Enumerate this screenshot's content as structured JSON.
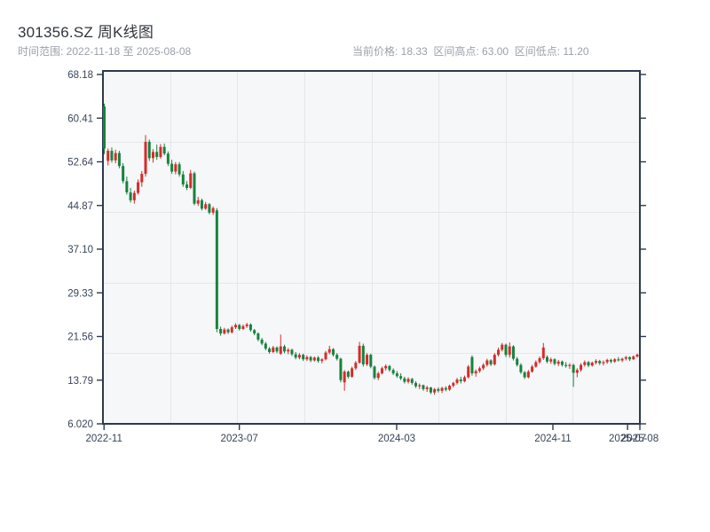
{
  "header": {
    "title": "301356.SZ 周K线图",
    "date_range": "时间范围: 2022-11-18 至 2025-08-08",
    "price_summary": "当前价格: 18.33  区间高点: 63.00  区间低点: 11.20"
  },
  "chart_data": {
    "type": "candlestick",
    "symbol": "301356.SZ",
    "period": "weekly",
    "title": "301356.SZ 周K线图",
    "start_date": "2022-11-18",
    "end_date": "2025-08-08",
    "interval_days": 7,
    "current_price": 18.33,
    "range_high": 63.0,
    "range_low": 11.2,
    "colors": {
      "up": "#d62c2a",
      "down": "#17833c"
    },
    "grid": {
      "vertical_divisions": 8,
      "horizontal_divisions": 5
    },
    "y_axis": {
      "max": 68.18,
      "min": 6.02,
      "ticks": [
        "68.18",
        "60.41",
        "52.64",
        "44.87",
        "37.10",
        "29.33",
        "21.56",
        "13.79",
        "6.020"
      ]
    },
    "x_axis": {
      "ticks": [
        {
          "label": "2022-11",
          "pos": 0.002
        },
        {
          "label": "2023-07",
          "pos": 0.254
        },
        {
          "label": "2024-03",
          "pos": 0.547
        },
        {
          "label": "2024-11",
          "pos": 0.838
        },
        {
          "label": "2025-07",
          "pos": 0.977
        },
        {
          "label": "2025-08",
          "pos": 1.0
        }
      ]
    },
    "ohlc": [
      [
        62.5,
        63.0,
        54.0,
        55.0
      ],
      [
        52.8,
        55.0,
        52.0,
        54.6
      ],
      [
        54.6,
        55.2,
        52.5,
        52.9
      ],
      [
        52.9,
        54.8,
        52.4,
        54.2
      ],
      [
        54.2,
        54.6,
        51.5,
        51.9
      ],
      [
        51.9,
        52.4,
        48.8,
        49.2
      ],
      [
        49.2,
        50.0,
        46.8,
        47.2
      ],
      [
        47.2,
        48.0,
        45.4,
        45.8
      ],
      [
        45.8,
        47.5,
        45.2,
        47.1
      ],
      [
        47.1,
        49.5,
        46.8,
        49.0
      ],
      [
        49.0,
        51.0,
        48.2,
        50.5
      ],
      [
        50.5,
        57.4,
        50.0,
        56.2
      ],
      [
        56.2,
        56.6,
        52.8,
        53.3
      ],
      [
        53.3,
        54.9,
        52.5,
        54.4
      ],
      [
        54.4,
        55.7,
        53.0,
        53.5
      ],
      [
        53.5,
        55.8,
        53.2,
        55.3
      ],
      [
        55.3,
        55.9,
        53.8,
        54.1
      ],
      [
        54.1,
        54.5,
        51.9,
        52.3
      ],
      [
        52.3,
        53.0,
        50.5,
        50.9
      ],
      [
        50.9,
        52.6,
        50.4,
        52.2
      ],
      [
        52.2,
        52.6,
        50.0,
        50.4
      ],
      [
        50.4,
        51.0,
        48.2,
        48.6
      ],
      [
        48.6,
        49.2,
        47.6,
        48.0
      ],
      [
        48.0,
        51.2,
        47.8,
        50.6
      ],
      [
        50.6,
        50.9,
        44.9,
        45.2
      ],
      [
        45.2,
        46.4,
        44.8,
        45.8
      ],
      [
        45.8,
        46.1,
        44.0,
        44.3
      ],
      [
        44.3,
        45.5,
        44.1,
        45.1
      ],
      [
        45.1,
        45.3,
        43.3,
        43.6
      ],
      [
        43.6,
        44.7,
        43.2,
        44.4
      ],
      [
        44.0,
        44.4,
        22.3,
        22.9
      ],
      [
        22.9,
        23.3,
        21.7,
        22.1
      ],
      [
        22.1,
        23.1,
        21.9,
        22.8
      ],
      [
        22.8,
        23.0,
        22.0,
        22.3
      ],
      [
        22.3,
        23.5,
        22.1,
        23.2
      ],
      [
        23.2,
        23.9,
        22.9,
        23.6
      ],
      [
        23.6,
        23.8,
        22.6,
        22.9
      ],
      [
        22.9,
        23.7,
        22.7,
        23.4
      ],
      [
        23.4,
        24.0,
        23.1,
        23.7
      ],
      [
        23.7,
        23.9,
        22.4,
        22.7
      ],
      [
        22.7,
        22.9,
        21.8,
        22.1
      ],
      [
        22.1,
        22.3,
        20.7,
        21.0
      ],
      [
        21.0,
        21.3,
        20.0,
        20.3
      ],
      [
        20.3,
        20.6,
        19.1,
        19.4
      ],
      [
        19.4,
        19.7,
        18.5,
        18.8
      ],
      [
        18.8,
        19.9,
        18.6,
        19.6
      ],
      [
        19.6,
        19.8,
        18.6,
        18.9
      ],
      [
        18.5,
        21.9,
        18.3,
        19.8
      ],
      [
        19.8,
        20.1,
        18.6,
        18.9
      ],
      [
        18.9,
        19.5,
        18.4,
        19.2
      ],
      [
        19.2,
        19.4,
        18.1,
        18.4
      ],
      [
        18.4,
        18.8,
        17.5,
        17.8
      ],
      [
        17.8,
        18.6,
        17.5,
        18.3
      ],
      [
        18.3,
        18.5,
        17.2,
        17.5
      ],
      [
        17.5,
        18.2,
        17.2,
        17.9
      ],
      [
        17.9,
        18.1,
        17.0,
        17.3
      ],
      [
        17.3,
        18.0,
        17.1,
        17.8
      ],
      [
        17.8,
        18.1,
        16.9,
        17.2
      ],
      [
        17.2,
        17.7,
        16.8,
        17.5
      ],
      [
        17.5,
        19.0,
        17.3,
        18.7
      ],
      [
        18.7,
        19.9,
        18.4,
        19.3
      ],
      [
        19.3,
        19.5,
        18.0,
        18.3
      ],
      [
        18.3,
        18.6,
        17.3,
        17.6
      ],
      [
        17.6,
        17.8,
        13.4,
        13.8
      ],
      [
        13.4,
        15.6,
        11.9,
        15.3
      ],
      [
        15.3,
        15.5,
        14.1,
        14.4
      ],
      [
        14.4,
        16.2,
        14.2,
        15.9
      ],
      [
        15.9,
        17.2,
        15.6,
        16.9
      ],
      [
        16.9,
        20.6,
        16.7,
        19.9
      ],
      [
        19.9,
        20.3,
        16.2,
        16.6
      ],
      [
        16.6,
        18.6,
        16.3,
        18.3
      ],
      [
        18.3,
        18.5,
        15.9,
        16.2
      ],
      [
        16.2,
        16.4,
        13.9,
        14.2
      ],
      [
        14.2,
        15.3,
        13.8,
        15.0
      ],
      [
        15.0,
        16.2,
        14.8,
        15.9
      ],
      [
        15.9,
        16.6,
        15.5,
        16.3
      ],
      [
        16.3,
        16.5,
        15.3,
        15.6
      ],
      [
        15.6,
        15.9,
        14.7,
        15.0
      ],
      [
        15.0,
        15.4,
        14.2,
        14.5
      ],
      [
        14.5,
        15.0,
        13.8,
        14.1
      ],
      [
        14.1,
        14.4,
        13.2,
        13.5
      ],
      [
        13.5,
        14.3,
        13.2,
        14.0
      ],
      [
        14.0,
        14.2,
        13.0,
        13.3
      ],
      [
        13.3,
        13.6,
        12.4,
        12.7
      ],
      [
        12.7,
        13.2,
        12.2,
        12.9
      ],
      [
        12.9,
        13.0,
        11.9,
        12.2
      ],
      [
        12.2,
        12.8,
        11.7,
        12.5
      ],
      [
        12.5,
        12.6,
        11.3,
        11.6
      ],
      [
        11.6,
        12.4,
        11.2,
        12.2
      ],
      [
        12.2,
        12.5,
        11.6,
        11.9
      ],
      [
        11.9,
        12.6,
        11.5,
        12.4
      ],
      [
        12.4,
        12.7,
        11.8,
        12.1
      ],
      [
        12.1,
        13.0,
        11.9,
        12.8
      ],
      [
        12.8,
        13.5,
        12.5,
        13.3
      ],
      [
        13.3,
        14.2,
        13.0,
        13.9
      ],
      [
        13.9,
        14.4,
        13.2,
        13.6
      ],
      [
        13.6,
        14.6,
        13.4,
        14.3
      ],
      [
        14.3,
        16.5,
        14.1,
        16.2
      ],
      [
        17.9,
        18.2,
        14.6,
        15.0
      ],
      [
        15.0,
        15.7,
        14.4,
        15.4
      ],
      [
        15.4,
        16.2,
        15.1,
        15.9
      ],
      [
        15.9,
        16.8,
        15.6,
        16.5
      ],
      [
        16.5,
        17.6,
        16.2,
        17.3
      ],
      [
        17.3,
        17.5,
        16.3,
        16.6
      ],
      [
        16.6,
        18.6,
        16.4,
        18.3
      ],
      [
        18.3,
        19.6,
        18.0,
        19.2
      ],
      [
        19.2,
        20.4,
        18.9,
        20.1
      ],
      [
        20.1,
        20.3,
        17.9,
        18.3
      ],
      [
        18.3,
        20.5,
        17.8,
        19.8
      ],
      [
        19.8,
        20.0,
        17.3,
        17.6
      ],
      [
        17.6,
        17.9,
        16.2,
        16.5
      ],
      [
        16.5,
        16.8,
        14.9,
        15.2
      ],
      [
        15.2,
        15.4,
        14.0,
        14.3
      ],
      [
        14.3,
        15.6,
        14.1,
        15.3
      ],
      [
        15.3,
        16.5,
        15.1,
        16.2
      ],
      [
        16.2,
        17.3,
        16.0,
        17.0
      ],
      [
        17.0,
        18.0,
        16.7,
        17.7
      ],
      [
        17.7,
        20.4,
        17.4,
        19.6
      ],
      [
        17.9,
        18.2,
        16.8,
        17.1
      ],
      [
        17.1,
        17.8,
        16.7,
        17.5
      ],
      [
        17.5,
        17.7,
        16.4,
        16.7
      ],
      [
        16.7,
        17.4,
        16.3,
        17.1
      ],
      [
        17.1,
        17.3,
        16.2,
        16.5
      ],
      [
        16.5,
        17.0,
        16.0,
        16.3
      ],
      [
        16.3,
        16.8,
        15.8,
        16.5
      ],
      [
        16.5,
        16.7,
        12.6,
        15.1
      ],
      [
        15.1,
        15.9,
        14.3,
        15.6
      ],
      [
        15.6,
        16.8,
        15.3,
        16.5
      ],
      [
        16.5,
        17.3,
        16.2,
        17.0
      ],
      [
        17.0,
        17.2,
        16.1,
        16.4
      ],
      [
        16.4,
        17.1,
        16.2,
        16.9
      ],
      [
        16.9,
        17.5,
        16.6,
        17.2
      ],
      [
        17.2,
        17.4,
        16.5,
        16.8
      ],
      [
        16.8,
        17.3,
        16.4,
        17.0
      ],
      [
        17.0,
        17.6,
        16.7,
        17.4
      ],
      [
        17.4,
        17.6,
        16.8,
        17.1
      ],
      [
        17.1,
        17.7,
        16.9,
        17.5
      ],
      [
        17.5,
        17.9,
        17.1,
        17.3
      ],
      [
        17.3,
        17.8,
        17.0,
        17.6
      ],
      [
        17.6,
        18.1,
        17.3,
        17.9
      ],
      [
        17.9,
        18.0,
        17.2,
        17.5
      ],
      [
        17.5,
        18.2,
        17.4,
        18.0
      ],
      [
        18.0,
        18.5,
        17.8,
        18.33
      ]
    ]
  }
}
